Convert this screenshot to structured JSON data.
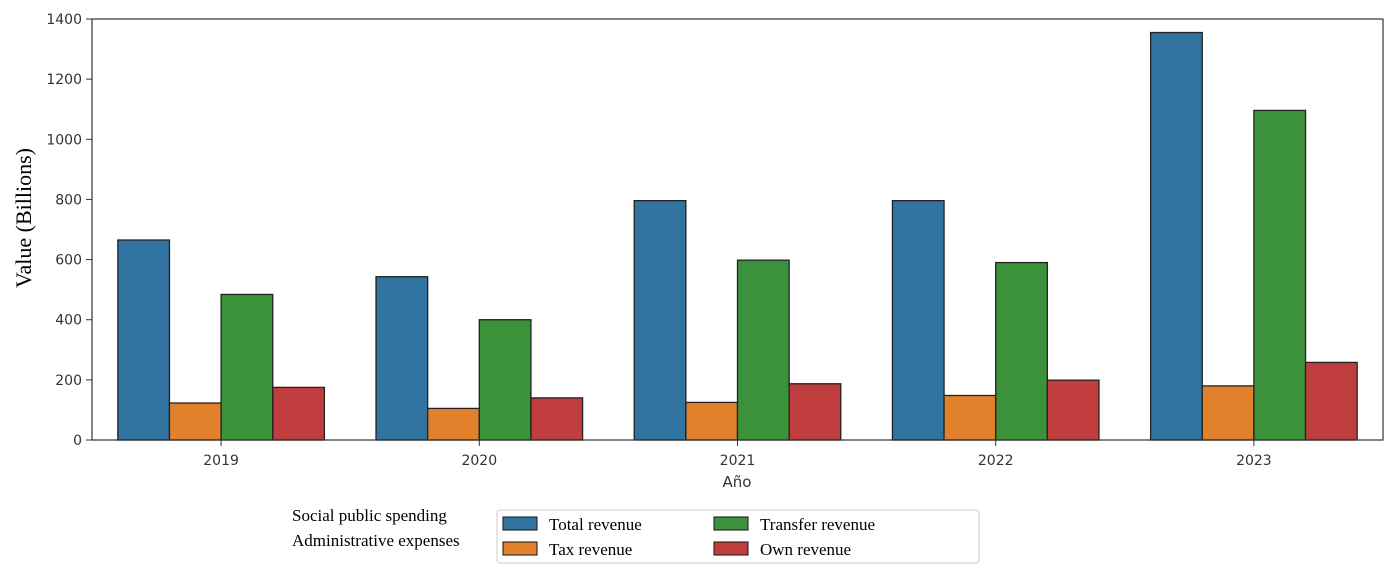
{
  "chart_data": {
    "type": "bar",
    "title": "",
    "xlabel": "Año",
    "ylabel": "Value (Billions)",
    "ylim": [
      0,
      1400
    ],
    "yticks": [
      0,
      200,
      400,
      600,
      800,
      1000,
      1200,
      1400
    ],
    "categories": [
      "2019",
      "2020",
      "2021",
      "2022",
      "2023"
    ],
    "series": [
      {
        "name": "Total revenue",
        "color": "#3174a1",
        "values": [
          665,
          543,
          796,
          796,
          1355
        ]
      },
      {
        "name": "Tax revenue",
        "color": "#e1812c",
        "values": [
          123,
          105,
          125,
          148,
          180
        ]
      },
      {
        "name": "Transfer revenue",
        "color": "#3b923b",
        "values": [
          484,
          400,
          598,
          590,
          1096
        ]
      },
      {
        "name": "Own revenue",
        "color": "#c03d3e",
        "values": [
          175,
          140,
          187,
          199,
          258
        ]
      }
    ],
    "legend": {
      "placement": "bottom-center, outside plot",
      "side_labels": [
        "Social public spending",
        "Administrative expenses"
      ]
    },
    "grid": false
  }
}
